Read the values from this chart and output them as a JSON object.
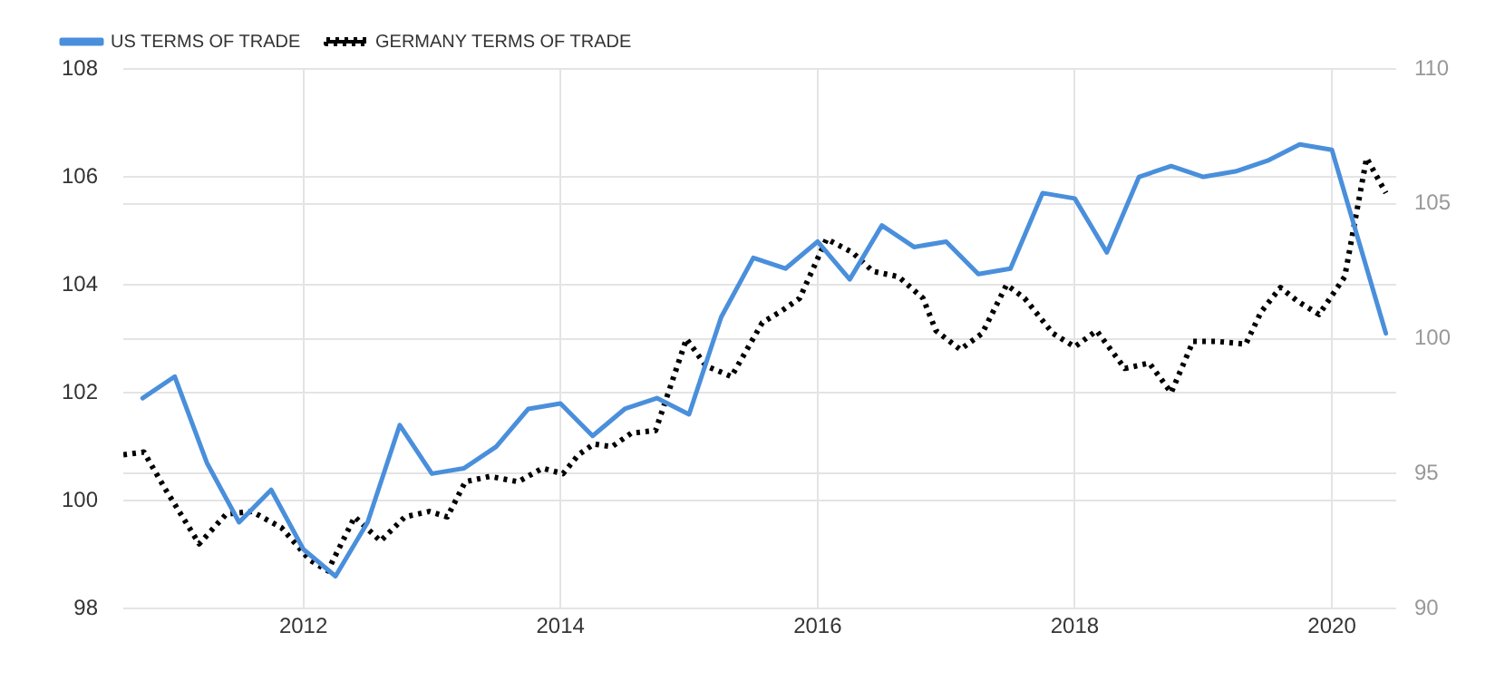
{
  "chart_data": {
    "type": "line",
    "legend": "top left",
    "grid": true,
    "marker": "none",
    "xlim": [
      2010.6,
      2020.5
    ],
    "xticks": [
      2012,
      2014,
      2016,
      2018,
      2020
    ],
    "ylim": [
      98,
      108
    ],
    "yticks": [
      98,
      100,
      102,
      104,
      106,
      108
    ],
    "y2lim": [
      90,
      110
    ],
    "y2ticks": [
      90,
      95,
      100,
      105,
      110
    ],
    "series": [
      {
        "name": "US TERMS OF TRADE",
        "color": "#4a8fdb",
        "line_style": "solid",
        "x": [
          2010.75,
          2011,
          2011.25,
          2011.5,
          2011.75,
          2012,
          2012.25,
          2012.5,
          2012.75,
          2013,
          2013.25,
          2013.5,
          2013.75,
          2014,
          2014.25,
          2014.5,
          2014.75,
          2015,
          2015.25,
          2015.5,
          2015.75,
          2016,
          2016.25,
          2016.5,
          2016.75,
          2017,
          2017.25,
          2017.5,
          2017.75,
          2018,
          2018.25,
          2018.5,
          2018.75,
          2019,
          2019.25,
          2019.5,
          2019.75,
          2020,
          2020.42
        ],
        "values": [
          101.9,
          102.3,
          100.7,
          99.6,
          100.2,
          99.1,
          98.6,
          99.6,
          101.4,
          100.5,
          100.6,
          101.0,
          101.7,
          101.8,
          101.2,
          101.7,
          101.9,
          101.6,
          103.4,
          104.5,
          104.3,
          104.8,
          104.1,
          105.1,
          104.7,
          104.8,
          104.2,
          104.3,
          105.7,
          105.6,
          104.6,
          106.0,
          106.2,
          106.0,
          106.1,
          106.3,
          106.6,
          106.5,
          103.1
        ]
      },
      {
        "name": "GERMANY TERMS OF TRADE",
        "color": "#000000",
        "line_style": "dotted",
        "axis": "y2",
        "x": [
          2010.6,
          2010.76,
          2010.93,
          2011.19,
          2011.4,
          2011.6,
          2011.83,
          2012.05,
          2012.19,
          2012.4,
          2012.6,
          2012.79,
          2012.98,
          2013.12,
          2013.26,
          2013.45,
          2013.67,
          2013.86,
          2014.02,
          2014.14,
          2014.26,
          2014.4,
          2014.55,
          2014.74,
          2014.98,
          2015.13,
          2015.33,
          2015.57,
          2015.71,
          2015.86,
          2016.07,
          2016.27,
          2016.43,
          2016.63,
          2016.82,
          2016.92,
          2017.11,
          2017.28,
          2017.47,
          2017.61,
          2017.83,
          2018,
          2018.17,
          2018.39,
          2018.58,
          2018.75,
          2018.92,
          2019.11,
          2019.33,
          2019.45,
          2019.6,
          2019.73,
          2019.9,
          2020.1,
          2020.27,
          2020.42
        ],
        "values": [
          95.7,
          95.8,
          94.4,
          92.4,
          93.5,
          93.6,
          93.0,
          91.8,
          91.4,
          93.4,
          92.5,
          93.4,
          93.6,
          93.4,
          94.7,
          94.9,
          94.7,
          95.2,
          95.0,
          95.7,
          96.1,
          96.0,
          96.5,
          96.6,
          100.0,
          99.0,
          98.6,
          100.6,
          101.0,
          101.5,
          103.7,
          103.2,
          102.5,
          102.3,
          101.5,
          100.3,
          99.6,
          100.2,
          102.0,
          101.5,
          100.2,
          99.7,
          100.3,
          98.9,
          99.1,
          98.0,
          99.9,
          99.9,
          99.8,
          101.0,
          101.9,
          101.4,
          100.9,
          102.3,
          106.7,
          105.4
        ]
      }
    ]
  }
}
